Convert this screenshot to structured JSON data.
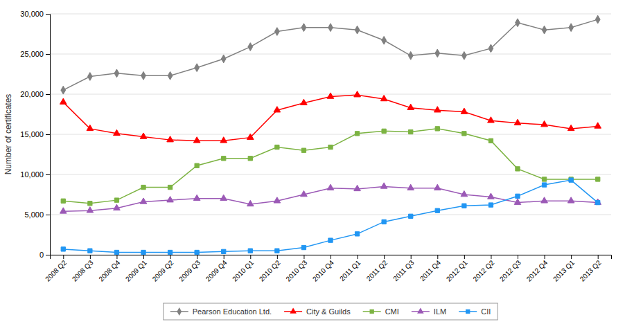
{
  "chart_data": {
    "type": "line",
    "categories": [
      "2008 Q2",
      "2008 Q3",
      "2008 Q4",
      "2009 Q1",
      "2009 Q2",
      "2009 Q3",
      "2009 Q4",
      "2010 Q1",
      "2010 Q2",
      "2010 Q3",
      "2010 Q4",
      "2011 Q1",
      "2011 Q2",
      "2011 Q3",
      "2011 Q4",
      "2012 Q1",
      "2012 Q2",
      "2012 Q3",
      "2012 Q4",
      "2013 Q1",
      "2013 Q2"
    ],
    "series": [
      {
        "name": "Pearson Education Ltd.",
        "color": "#808080",
        "marker": "diamond",
        "values": [
          20500,
          22200,
          22600,
          22300,
          22300,
          23300,
          24400,
          25900,
          27800,
          28300,
          28300,
          28000,
          26700,
          24800,
          25100,
          24800,
          25700,
          28900,
          28000,
          28300,
          29300
        ]
      },
      {
        "name": "City & Guilds",
        "color": "#FF0000",
        "marker": "triangle",
        "values": [
          19000,
          15700,
          15100,
          14700,
          14300,
          14200,
          14200,
          14600,
          18000,
          18900,
          19700,
          19900,
          19400,
          18300,
          18000,
          17800,
          16700,
          16400,
          16200,
          15700,
          16000
        ]
      },
      {
        "name": "CMI",
        "color": "#7CB342",
        "marker": "square",
        "values": [
          6700,
          6400,
          6800,
          8400,
          8400,
          11100,
          12000,
          12000,
          13400,
          13000,
          13400,
          15100,
          15400,
          15300,
          15700,
          15100,
          14200,
          10700,
          9400,
          9400,
          9400
        ]
      },
      {
        "name": "ILM",
        "color": "#9B59B6",
        "marker": "triangle",
        "values": [
          5400,
          5500,
          5800,
          6600,
          6800,
          7000,
          7000,
          6300,
          6700,
          7500,
          8300,
          8200,
          8500,
          8300,
          8300,
          7500,
          7200,
          6500,
          6700,
          6700,
          6500
        ]
      },
      {
        "name": "CII",
        "color": "#2196F3",
        "marker": "square",
        "values": [
          700,
          500,
          300,
          300,
          300,
          300,
          400,
          500,
          500,
          900,
          1800,
          2600,
          4100,
          4800,
          5500,
          6100,
          6200,
          7300,
          8700,
          9300,
          6500
        ]
      }
    ],
    "ylabel": "Number of certificates",
    "ylim": [
      0,
      30000
    ],
    "yticks": [
      0,
      {
        "value": 5000,
        "label": "5,000"
      },
      {
        "value": 10000,
        "label": "10,000"
      },
      {
        "value": 15000,
        "label": "15,000"
      },
      {
        "value": 20000,
        "label": "20,000"
      },
      {
        "value": 25000,
        "label": "25,000"
      },
      {
        "value": 30000,
        "label": "30,000"
      }
    ],
    "grid": true,
    "legend": "bottom"
  }
}
